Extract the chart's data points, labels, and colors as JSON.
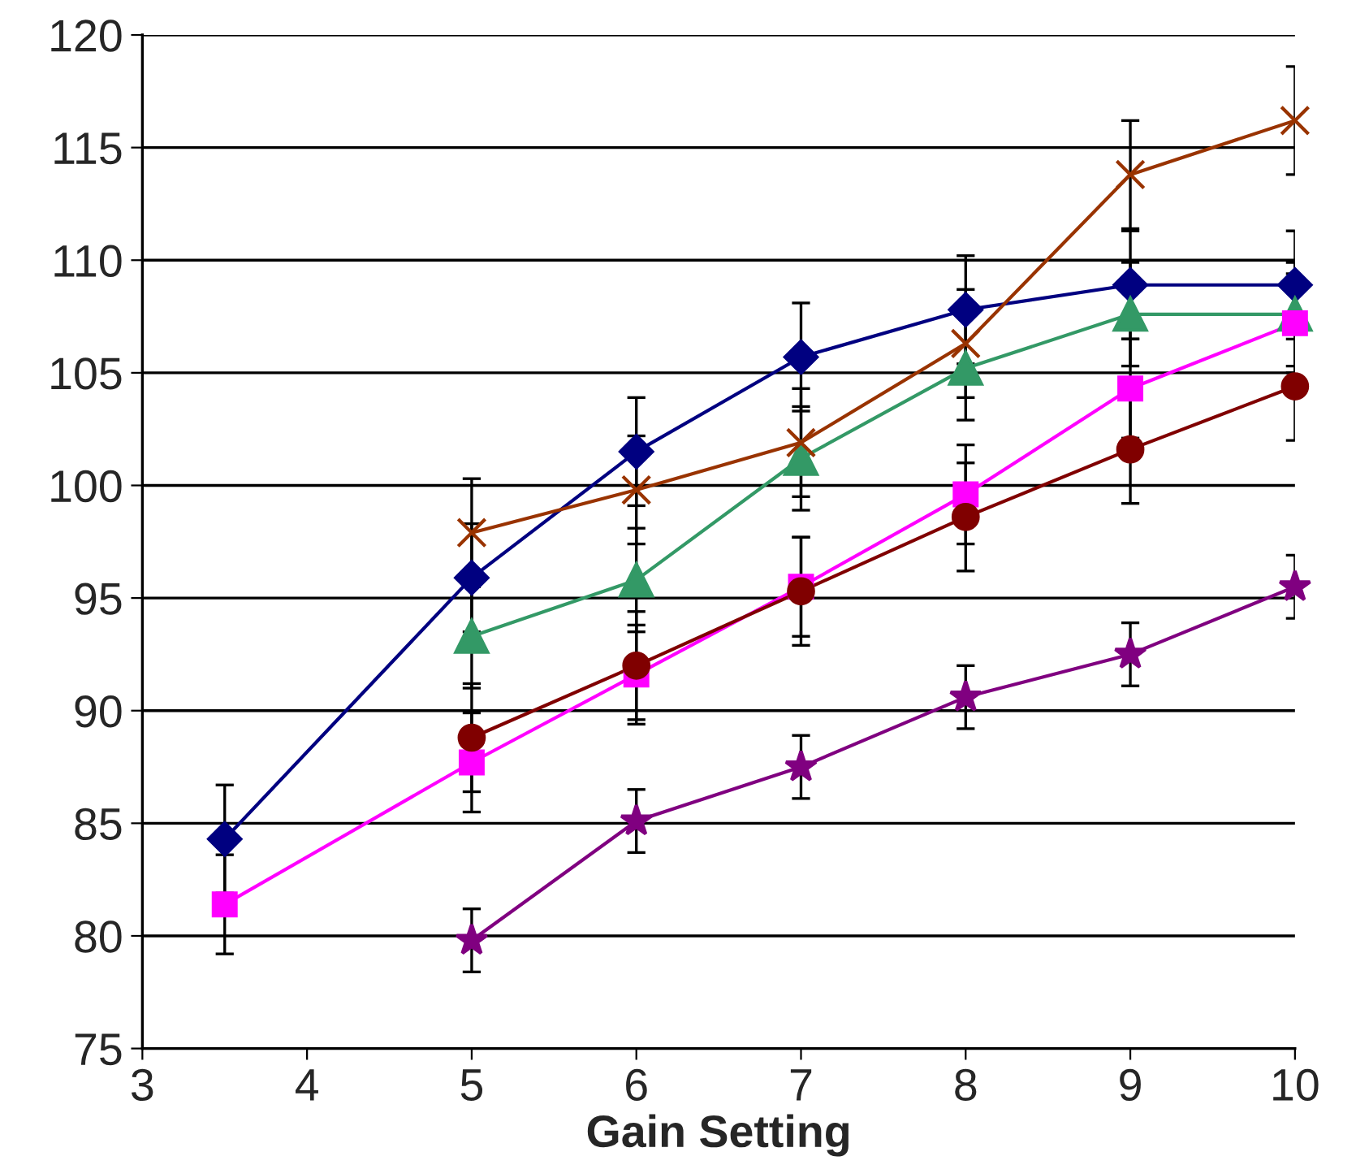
{
  "chart_data": {
    "type": "line",
    "xlabel": "Gain Setting",
    "xlim": [
      3,
      10
    ],
    "xticks": [
      3,
      4,
      5,
      6,
      7,
      8,
      9,
      10
    ],
    "ylim": [
      75,
      120
    ],
    "yticks": [
      75,
      80,
      85,
      90,
      95,
      100,
      105,
      110,
      115,
      120
    ],
    "grid": "y",
    "legend": false,
    "series": [
      {
        "color": "#000080",
        "marker": "diamond",
        "x": [
          3.5,
          5,
          6,
          7,
          8,
          9,
          10
        ],
        "values": [
          84.3,
          95.9,
          101.5,
          105.7,
          107.8,
          108.9,
          108.9
        ],
        "errors": [
          2.4,
          2.4,
          2.4,
          2.4,
          2.4,
          2.4,
          2.4
        ]
      },
      {
        "color": "#339966",
        "marker": "triangle",
        "x": [
          5,
          6,
          7,
          8,
          9,
          10
        ],
        "values": [
          93.3,
          95.8,
          101.2,
          105.2,
          107.6,
          107.6
        ],
        "errors": [
          2.3,
          2.3,
          2.3,
          2.3,
          2.3,
          2.3
        ]
      },
      {
        "color": "#ff00ff",
        "marker": "square",
        "x": [
          3.5,
          5,
          6,
          7,
          8,
          9,
          10
        ],
        "values": [
          81.4,
          87.7,
          91.6,
          95.5,
          99.6,
          104.3,
          107.2
        ],
        "errors": [
          2.2,
          2.2,
          2.2,
          2.2,
          2.2,
          2.2,
          2.2
        ]
      },
      {
        "color": "#800000",
        "marker": "circle",
        "x": [
          5,
          6,
          7,
          8,
          9,
          10
        ],
        "values": [
          88.8,
          92.0,
          95.3,
          98.6,
          101.6,
          104.4
        ],
        "errors": [
          2.4,
          2.4,
          2.4,
          2.4,
          2.4,
          2.4
        ]
      },
      {
        "color": "#993300",
        "marker": "cross",
        "x": [
          5,
          6,
          7,
          8,
          9,
          10
        ],
        "values": [
          97.9,
          99.8,
          101.9,
          106.3,
          113.8,
          116.2
        ],
        "errors": [
          2.4,
          2.4,
          2.4,
          2.4,
          2.4,
          2.4
        ]
      },
      {
        "color": "#800080",
        "marker": "star",
        "x": [
          5,
          6,
          7,
          8,
          9,
          10
        ],
        "values": [
          79.8,
          85.1,
          87.5,
          90.6,
          92.5,
          95.5
        ],
        "errors": [
          1.4,
          1.4,
          1.4,
          1.4,
          1.4,
          1.4
        ]
      }
    ]
  }
}
